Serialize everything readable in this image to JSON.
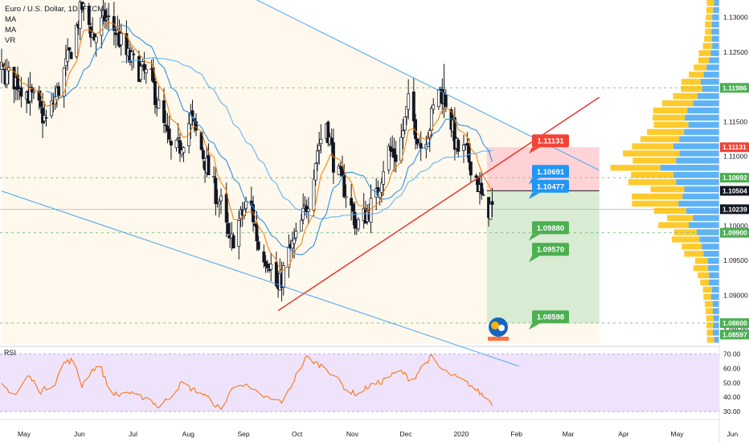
{
  "header": {
    "symbol_line": "Euro / U.S. Dollar, 1D, FXCM",
    "indicators": [
      "MA",
      "MA",
      "VR"
    ]
  },
  "rsi_label": "RSI",
  "colors": {
    "up": "#ffffff",
    "down": "#131722",
    "ema_fast": "#f57c00",
    "sma_fast": "#1e88e5",
    "sma_slow": "#64b5f6",
    "channel": "#42a5f5",
    "trendline": "#e53935",
    "vp_up": "#ffc107",
    "vp_down": "#42a5f5",
    "rsi_line": "#ff6d00",
    "rsi_band": "#e1bee7",
    "stop_zone": "#ffcdd2",
    "target_zone": "#c8e6c9",
    "dashed_level": "#81c784"
  },
  "chart_data": {
    "type": "candlestick",
    "instrument": "Euro / U.S. Dollar",
    "timeframe": "1D",
    "ylim": [
      1.083,
      1.1325
    ],
    "y_ticks": [
      "1.13000",
      "1.12500",
      "1.11500",
      "1.11000",
      "1.10500",
      "1.10000",
      "1.09500",
      "1.09000",
      "1.08500"
    ],
    "x_ticks": [
      "May",
      "Jun",
      "Jul",
      "Aug",
      "Sep",
      "Oct",
      "Nov",
      "Dec",
      "2020",
      "Feb",
      "Mar",
      "Apr",
      "May",
      "Jun"
    ],
    "x_tick_days": [
      0,
      31,
      61,
      92,
      123,
      153,
      184,
      214,
      245,
      276,
      305,
      336,
      366,
      397
    ],
    "last_day": 275,
    "closes_anchors": [
      [
        0,
        1.1222
      ],
      [
        10,
        1.1205
      ],
      [
        18,
        1.118
      ],
      [
        25,
        1.115
      ],
      [
        31,
        1.119
      ],
      [
        38,
        1.1245
      ],
      [
        45,
        1.1315
      ],
      [
        52,
        1.127
      ],
      [
        58,
        1.13
      ],
      [
        64,
        1.128
      ],
      [
        70,
        1.1245
      ],
      [
        77,
        1.1225
      ],
      [
        84,
        1.121
      ],
      [
        90,
        1.115
      ],
      [
        96,
        1.11
      ],
      [
        100,
        1.1115
      ],
      [
        106,
        1.1155
      ],
      [
        112,
        1.111
      ],
      [
        118,
        1.106
      ],
      [
        123,
        1.103
      ],
      [
        128,
        1.097
      ],
      [
        133,
        1.1005
      ],
      [
        139,
        1.104
      ],
      [
        144,
        1.097
      ],
      [
        150,
        1.095
      ],
      [
        155,
        1.0905
      ],
      [
        160,
        1.0955
      ],
      [
        166,
        1.0985
      ],
      [
        172,
        1.104
      ],
      [
        177,
        1.111
      ],
      [
        182,
        1.115
      ],
      [
        187,
        1.108
      ],
      [
        193,
        1.105
      ],
      [
        199,
        1.1
      ],
      [
        205,
        1.102
      ],
      [
        210,
        1.104
      ],
      [
        216,
        1.111
      ],
      [
        222,
        1.11
      ],
      [
        228,
        1.1175
      ],
      [
        235,
        1.1115
      ],
      [
        240,
        1.1145
      ],
      [
        245,
        1.12
      ],
      [
        250,
        1.1175
      ],
      [
        255,
        1.111
      ],
      [
        260,
        1.1105
      ],
      [
        265,
        1.108
      ],
      [
        270,
        1.103
      ],
      [
        275,
        1.1024
      ]
    ],
    "price_labels": [
      {
        "value": 1.11986,
        "text": "1.11986",
        "bg": "#4caf50"
      },
      {
        "value": 1.11131,
        "text": "1.11131",
        "bg": "#f44336"
      },
      {
        "value": 1.10692,
        "text": "1.10692",
        "bg": "#4caf50"
      },
      {
        "value": 1.10504,
        "text": "1.10504",
        "bg": "#131722"
      },
      {
        "value": 1.10239,
        "text": "1.10239",
        "bg": "#131722"
      },
      {
        "value": 1.099,
        "text": "1.09900",
        "bg": "#4caf50"
      },
      {
        "value": 1.086,
        "text": "1.08600",
        "bg": "#4caf50"
      },
      {
        "value": 1.08597,
        "text": "1.08597",
        "bg": "#4caf50"
      }
    ],
    "dashed_levels": [
      1.11986,
      1.10692,
      1.099,
      1.086
    ],
    "callouts": [
      {
        "text": "1.11131",
        "bg": "#f44336",
        "value": 1.11131
      },
      {
        "text": "1.10691",
        "bg": "#2196f3",
        "value": 1.10691
      },
      {
        "text": "1.10477",
        "bg": "#2196f3",
        "value": 1.10477
      },
      {
        "text": "1.09880",
        "bg": "#4caf50",
        "value": 1.0988
      },
      {
        "text": "1.09570",
        "bg": "#4caf50",
        "value": 1.0957
      },
      {
        "text": "1.08598",
        "bg": "#4caf50",
        "value": 1.08598
      }
    ],
    "position": {
      "entry": 1.10504,
      "stop": 1.11131,
      "target": 1.08598,
      "start_day": 272,
      "end_day": 335
    },
    "channel_upper": [
      [
        100,
        1.138
      ],
      [
        335,
        1.108
      ]
    ],
    "channel_lower": [
      [
        0,
        1.105
      ],
      [
        290,
        1.0798
      ]
    ],
    "trendline": [
      [
        155,
        1.0878
      ],
      [
        335,
        1.1185
      ]
    ],
    "rsi": {
      "ylim": [
        25,
        72
      ],
      "y_ticks": [
        "70.00",
        "60.00",
        "50.00",
        "40.00",
        "30.00"
      ],
      "band": [
        30,
        70
      ],
      "anchors": [
        [
          0,
          48
        ],
        [
          8,
          42
        ],
        [
          15,
          55
        ],
        [
          22,
          44
        ],
        [
          30,
          50
        ],
        [
          35,
          64
        ],
        [
          40,
          66
        ],
        [
          45,
          48
        ],
        [
          50,
          58
        ],
        [
          55,
          63
        ],
        [
          60,
          46
        ],
        [
          65,
          41
        ],
        [
          70,
          44
        ],
        [
          76,
          40
        ],
        [
          82,
          40
        ],
        [
          88,
          33
        ],
        [
          95,
          41
        ],
        [
          101,
          50
        ],
        [
          106,
          46
        ],
        [
          112,
          43
        ],
        [
          118,
          37
        ],
        [
          123,
          31
        ],
        [
          128,
          44
        ],
        [
          134,
          50
        ],
        [
          140,
          45
        ],
        [
          146,
          41
        ],
        [
          152,
          38
        ],
        [
          158,
          37
        ],
        [
          165,
          55
        ],
        [
          171,
          68
        ],
        [
          176,
          64
        ],
        [
          182,
          60
        ],
        [
          188,
          53
        ],
        [
          194,
          44
        ],
        [
          200,
          42
        ],
        [
          206,
          48
        ],
        [
          212,
          50
        ],
        [
          218,
          55
        ],
        [
          224,
          58
        ],
        [
          230,
          51
        ],
        [
          236,
          62
        ],
        [
          241,
          68
        ],
        [
          246,
          60
        ],
        [
          251,
          56
        ],
        [
          256,
          53
        ],
        [
          262,
          49
        ],
        [
          268,
          43
        ],
        [
          275,
          36
        ]
      ]
    }
  }
}
